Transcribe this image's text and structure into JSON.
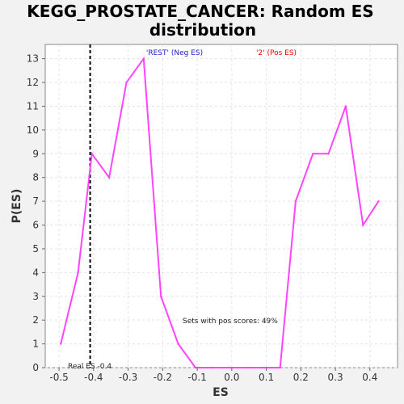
{
  "chart_data": {
    "type": "line",
    "title_lines": [
      "KEGG_PROSTATE_CANCER: Random ES",
      "distribution"
    ],
    "xlabel": "ES",
    "ylabel": "P(ES)",
    "xlim": [
      -0.54,
      0.48
    ],
    "ylim": [
      0,
      13.6
    ],
    "xticks": [
      -0.5,
      -0.4,
      -0.3,
      -0.2,
      -0.1,
      0.0,
      0.1,
      0.2,
      0.3,
      0.4
    ],
    "xtick_labels": [
      "-0.5",
      "-0.4",
      "-0.3",
      "-0.2",
      "-0.1",
      "0.0",
      "0.1",
      "0.2",
      "0.3",
      "0.4"
    ],
    "yticks": [
      0,
      1,
      2,
      3,
      4,
      5,
      6,
      7,
      8,
      9,
      10,
      11,
      12,
      13
    ],
    "ytick_labels": [
      "0",
      "1",
      "2",
      "3",
      "4",
      "5",
      "6",
      "7",
      "8",
      "9",
      "10",
      "11",
      "12",
      "13"
    ],
    "grid": true,
    "series": [
      {
        "color": "#ff44ff",
        "x": [
          -0.495,
          -0.445,
          -0.405,
          -0.355,
          -0.305,
          -0.255,
          -0.205,
          -0.155,
          -0.105,
          -0.055,
          -0.005,
          0.045,
          0.095,
          0.14,
          0.185,
          0.235,
          0.28,
          0.33,
          0.38,
          0.425
        ],
        "y": [
          1,
          4,
          9,
          8,
          12,
          13,
          3,
          1,
          0,
          0,
          0,
          0,
          0,
          0,
          7,
          9,
          9,
          11,
          6,
          7
        ]
      }
    ],
    "real_es": -0.41,
    "real_es_label": "Real ES -0.4",
    "neg_label": "'REST' (Neg ES)",
    "pos_label": "'2' (Pos ES)",
    "pos_scores_note": "Sets with pos scores: 49%",
    "colors": {
      "background": "#f2f2f2",
      "plot_background": "#ffffff",
      "line": "#ff44ff",
      "neg_label": "#1a1acc",
      "pos_label": "#ee0000",
      "grid": "#e4e4e4",
      "real_es_line": "#000000"
    }
  }
}
